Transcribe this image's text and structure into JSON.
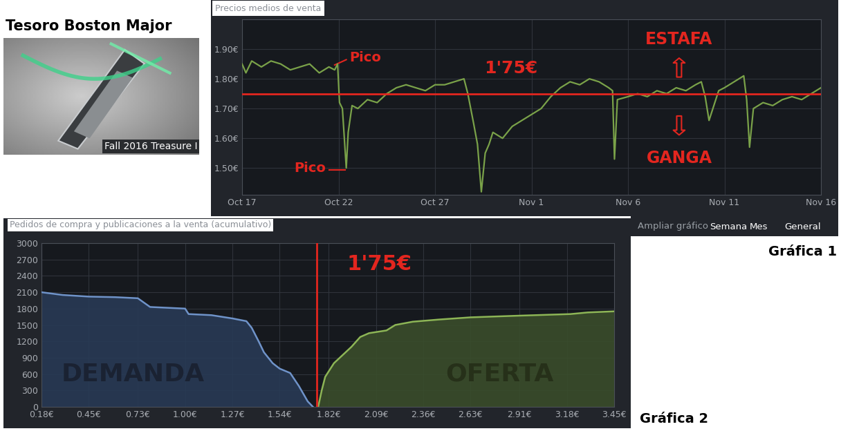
{
  "title": "Tesoro Boston Major",
  "image": {
    "caption": "Fall 2016 Treasure I"
  },
  "chart_data": [
    {
      "label": "Gráfica 1",
      "type": "line",
      "title": "Precios medios de venta",
      "x": [
        0,
        0.2,
        0.5,
        1,
        1.5,
        2,
        2.5,
        3,
        3.5,
        4,
        4.5,
        4.8,
        4.95,
        5.05,
        5.2,
        5.4,
        5.5,
        5.7,
        6,
        6.5,
        7,
        7.5,
        8,
        8.5,
        9,
        9.5,
        10,
        10.5,
        11,
        11.5,
        11.7,
        12,
        12.2,
        12.4,
        12.6,
        12.8,
        13,
        13.5,
        14,
        14.5,
        15,
        15.5,
        16,
        16.5,
        17,
        17.5,
        18,
        18.5,
        19,
        19.2,
        19.3,
        19.45,
        20,
        20.5,
        21,
        21.5,
        22,
        22.5,
        23,
        23.5,
        23.8,
        24,
        24.2,
        24.4,
        24.7,
        25,
        25.5,
        26,
        26.15,
        26.3,
        26.5,
        27,
        27.5,
        28,
        28.5,
        29,
        29.5,
        30
      ],
      "values": [
        1.85,
        1.82,
        1.86,
        1.84,
        1.86,
        1.85,
        1.83,
        1.84,
        1.85,
        1.82,
        1.84,
        1.83,
        1.85,
        1.72,
        1.7,
        1.5,
        1.62,
        1.71,
        1.7,
        1.73,
        1.72,
        1.75,
        1.77,
        1.78,
        1.77,
        1.76,
        1.78,
        1.78,
        1.79,
        1.8,
        1.75,
        1.65,
        1.58,
        1.42,
        1.55,
        1.58,
        1.62,
        1.6,
        1.64,
        1.66,
        1.68,
        1.7,
        1.74,
        1.77,
        1.79,
        1.78,
        1.8,
        1.79,
        1.77,
        1.76,
        1.53,
        1.73,
        1.74,
        1.75,
        1.74,
        1.76,
        1.75,
        1.77,
        1.76,
        1.78,
        1.79,
        1.74,
        1.66,
        1.7,
        1.76,
        1.77,
        1.79,
        1.81,
        1.73,
        1.57,
        1.7,
        1.72,
        1.71,
        1.73,
        1.74,
        1.73,
        1.75,
        1.77
      ],
      "color": "#7aa249",
      "xlim": [
        0,
        30
      ],
      "xticks": [
        {
          "value": 0,
          "label": "Oct 17"
        },
        {
          "value": 5,
          "label": "Oct 22"
        },
        {
          "value": 10,
          "label": "Oct 27"
        },
        {
          "value": 15,
          "label": "Nov 1"
        },
        {
          "value": 20,
          "label": "Nov 6"
        },
        {
          "value": 25,
          "label": "Nov 11"
        },
        {
          "value": 30,
          "label": "Nov 16"
        }
      ],
      "ylim": [
        1.41,
        2.0
      ],
      "yticks": [
        {
          "value": 1.5,
          "label": "1.50€"
        },
        {
          "value": 1.6,
          "label": "1.60€"
        },
        {
          "value": 1.7,
          "label": "1.70€"
        },
        {
          "value": 1.8,
          "label": "1.80€"
        },
        {
          "value": 1.9,
          "label": "1.90€"
        }
      ],
      "grid": true,
      "reference_line": {
        "value": 1.75,
        "label": "1'75€",
        "color": "#e3261f"
      },
      "annotations": [
        "Pico",
        "Pico",
        "ESTAFA",
        "GANGA"
      ],
      "controls": {
        "label": "Ampliar gráfico",
        "options": [
          "Semana",
          "Mes",
          "General"
        ]
      }
    },
    {
      "label": "Gráfica 2",
      "type": "area",
      "title": "Pedidos de compra y publicaciones a la venta (acumulativo)",
      "series": [
        {
          "name": "DEMANDA",
          "color": "#6f93c9",
          "x": [
            0.18,
            0.3,
            0.45,
            0.6,
            0.73,
            0.8,
            1.0,
            1.02,
            1.15,
            1.27,
            1.35,
            1.38,
            1.42,
            1.45,
            1.5,
            1.54,
            1.6,
            1.65,
            1.7,
            1.73
          ],
          "values": [
            2100,
            2050,
            2020,
            2010,
            1990,
            1830,
            1800,
            1700,
            1680,
            1620,
            1570,
            1450,
            1200,
            1000,
            800,
            700,
            620,
            380,
            100,
            0
          ]
        },
        {
          "name": "OFERTA",
          "color": "#8db556",
          "x": [
            1.76,
            1.78,
            1.8,
            1.85,
            1.9,
            1.95,
            2.0,
            2.05,
            2.15,
            2.2,
            2.3,
            2.45,
            2.63,
            2.9,
            3.1,
            3.2,
            3.3,
            3.45
          ],
          "values": [
            0,
            300,
            550,
            800,
            950,
            1100,
            1280,
            1350,
            1400,
            1500,
            1560,
            1600,
            1640,
            1670,
            1690,
            1700,
            1730,
            1750
          ]
        }
      ],
      "xlim": [
        0.18,
        3.45
      ],
      "xticks": [
        {
          "value": 0.18,
          "label": "0.18€"
        },
        {
          "value": 0.45,
          "label": "0.45€"
        },
        {
          "value": 0.73,
          "label": "0.73€"
        },
        {
          "value": 1.0,
          "label": "1.00€"
        },
        {
          "value": 1.27,
          "label": "1.27€"
        },
        {
          "value": 1.54,
          "label": "1.54€"
        },
        {
          "value": 1.82,
          "label": "1.82€"
        },
        {
          "value": 2.09,
          "label": "2.09€"
        },
        {
          "value": 2.36,
          "label": "2.36€"
        },
        {
          "value": 2.63,
          "label": "2.63€"
        },
        {
          "value": 2.91,
          "label": "2.91€"
        },
        {
          "value": 3.18,
          "label": "3.18€"
        },
        {
          "value": 3.45,
          "label": "3.45€"
        }
      ],
      "ylim": [
        0,
        3000
      ],
      "yticks": [
        0,
        300,
        600,
        900,
        1200,
        1500,
        1800,
        2100,
        2400,
        2700,
        3000
      ],
      "grid": true,
      "reference_line": {
        "value": 1.75,
        "label": "1'75€",
        "color": "#e3261f"
      }
    }
  ]
}
